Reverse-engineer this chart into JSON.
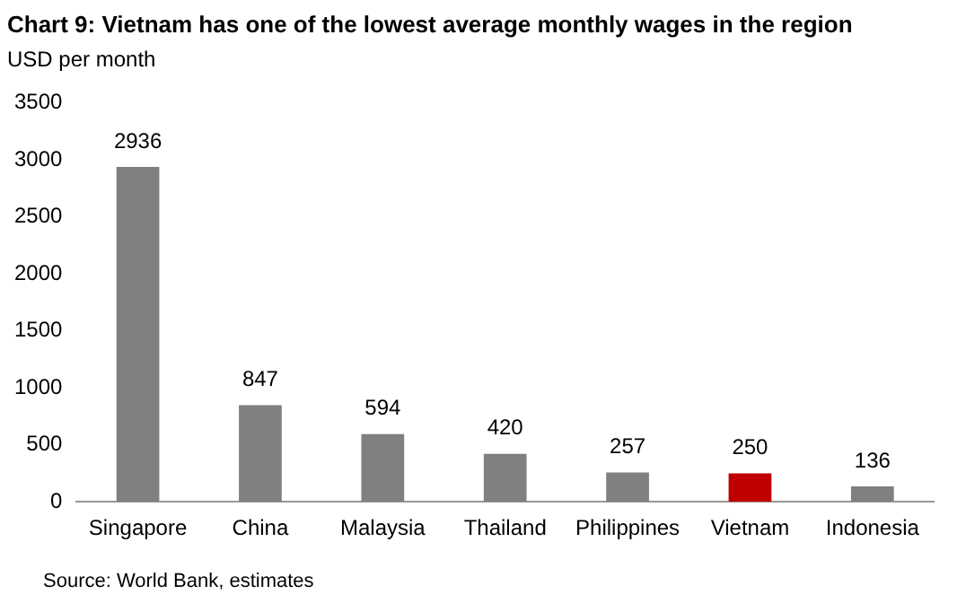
{
  "chart_data": {
    "type": "bar",
    "title": "Chart 9: Vietnam has one of the lowest average monthly wages in the region",
    "ylabel": "USD per month",
    "categories": [
      "Singapore",
      "China",
      "Malaysia",
      "Thailand",
      "Philippines",
      "Vietnam",
      "Indonesia"
    ],
    "values": [
      2936,
      847,
      594,
      420,
      257,
      250,
      136
    ],
    "colors": [
      "#808080",
      "#808080",
      "#808080",
      "#808080",
      "#808080",
      "#c00000",
      "#808080"
    ],
    "ylim": [
      0,
      3500
    ],
    "yticks": [
      0,
      500,
      1000,
      1500,
      2000,
      2500,
      3000,
      3500
    ],
    "grid": false,
    "legend": false,
    "data_labels": true,
    "annotations": [
      "Source: World Bank, estimates"
    ]
  }
}
